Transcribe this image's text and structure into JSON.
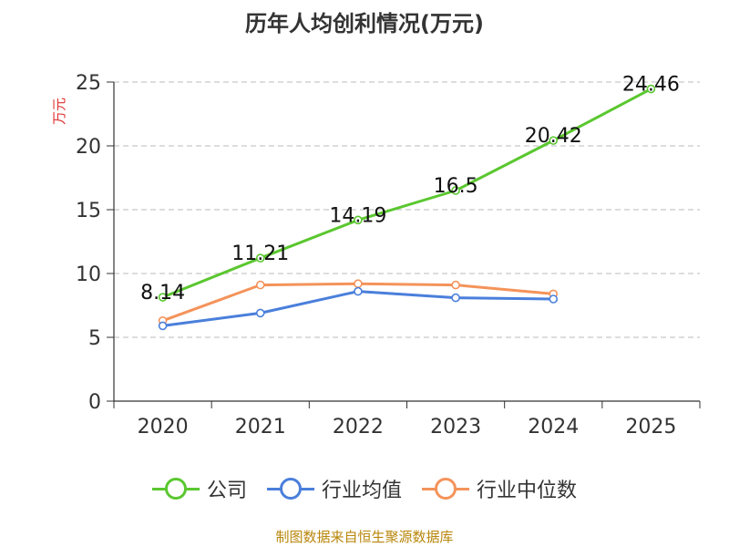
{
  "chart_data": {
    "type": "line",
    "title": "历年人均创利情况(万元)",
    "ylabel": "万元",
    "xlabel": "",
    "categories": [
      "2020",
      "2021",
      "2022",
      "2023",
      "2024",
      "2025"
    ],
    "ylim": [
      0,
      25
    ],
    "yticks": [
      0,
      5,
      10,
      15,
      20,
      25
    ],
    "grid": true,
    "legend_position": "bottom",
    "series": [
      {
        "name": "公司",
        "color": "#5ac72f",
        "values": [
          8.14,
          11.21,
          14.19,
          16.5,
          20.42,
          24.46
        ],
        "labels": [
          "8.14",
          "11.21",
          "14.19",
          "16.5",
          "20.42",
          "24.46"
        ]
      },
      {
        "name": "行业均值",
        "color": "#4a7fdb",
        "values": [
          5.9,
          6.9,
          8.6,
          8.1,
          8.0,
          null
        ]
      },
      {
        "name": "行业中位数",
        "color": "#f4935a",
        "values": [
          6.3,
          9.1,
          9.2,
          9.1,
          8.4,
          null
        ]
      }
    ]
  },
  "source": "制图数据来自恒生聚源数据库"
}
